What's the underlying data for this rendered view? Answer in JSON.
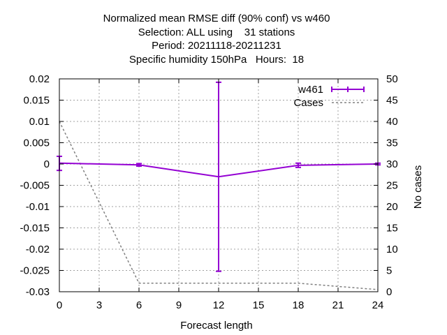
{
  "chart_data": {
    "type": "line",
    "title": [
      "Normalized mean RMSE diff (90% conf) vs w460",
      "Selection: ALL using    31 stations",
      "Period: 20211118-20211231",
      "Specific humidity 150hPa   Hours:  18"
    ],
    "xlabel": "Forecast length",
    "ylabel": "",
    "y2label": "No cases",
    "xlim": [
      0,
      24
    ],
    "ylim": [
      -0.03,
      0.02
    ],
    "y2lim": [
      0,
      50
    ],
    "xticks": [
      "0",
      "3",
      "6",
      "9",
      "12",
      "15",
      "18",
      "21",
      "24"
    ],
    "yticks": [
      "-0.03",
      "-0.025",
      "-0.02",
      "-0.015",
      "-0.01",
      "-0.005",
      "0",
      "0.005",
      "0.01",
      "0.015",
      "0.02"
    ],
    "y2ticks": [
      "0",
      "5",
      "10",
      "15",
      "20",
      "25",
      "30",
      "35",
      "40",
      "45",
      "50"
    ],
    "grid": true,
    "legend_position": "top-right",
    "series": [
      {
        "name": "w461",
        "axis": "y",
        "color": "#9400d3",
        "style": "line-errorbars",
        "x": [
          0,
          6,
          12,
          18,
          24
        ],
        "y": [
          0.0002,
          -0.0002,
          -0.003,
          -0.0003,
          0.0
        ],
        "err_low": [
          -0.0015,
          -0.0005,
          -0.0252,
          -0.0008,
          -0.0002
        ],
        "err_high": [
          0.0018,
          0.0001,
          0.0192,
          0.0002,
          0.0002
        ]
      },
      {
        "name": "Cases",
        "axis": "y2",
        "color": "#808080",
        "style": "dashed",
        "x": [
          0,
          6,
          12,
          18,
          24
        ],
        "y": [
          40,
          2,
          2,
          2,
          0.5
        ]
      }
    ]
  }
}
